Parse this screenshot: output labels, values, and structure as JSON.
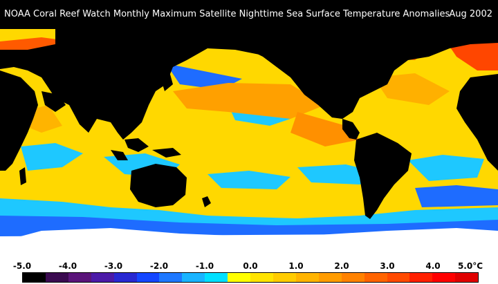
{
  "title": {
    "text": "NOAA Coral Reef Watch Monthly Maximum Satellite Nighttime Sea Surface Temperature Anomalies",
    "date": "Aug 2002"
  },
  "legend": {
    "unit": "°C",
    "ticks": [
      "-5.0",
      "-4.0",
      "-3.0",
      "-2.0",
      "-1.0",
      "0.0",
      "1.0",
      "2.0",
      "3.0",
      "4.0",
      "5.0"
    ],
    "colors": [
      "#000000",
      "#3a0a50",
      "#5a147a",
      "#4b1aa8",
      "#2828d2",
      "#1446ff",
      "#1e78ff",
      "#19b4ff",
      "#00e0ff",
      "#ffff00",
      "#ffe400",
      "#ffcc00",
      "#ffb400",
      "#ff9c00",
      "#ff8200",
      "#ff6400",
      "#ff4a00",
      "#ff2000",
      "#ff0000",
      "#e00000"
    ]
  },
  "map": {
    "land_color": "#000000",
    "ice_color": "#ffffff",
    "anomaly_palette": {
      "warm": "#ff8c00",
      "neutral": "#ffe000",
      "cool": "#00c8ff",
      "cold": "#1e50ff"
    }
  }
}
